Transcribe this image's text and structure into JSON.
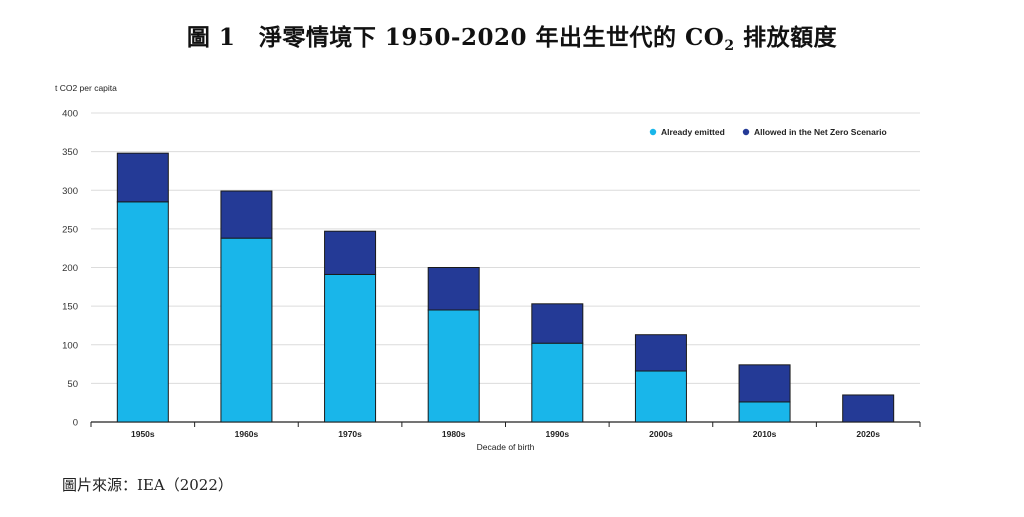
{
  "figure": {
    "title_prefix": "圖 1　淨零情境下 1950-2020 年出生世代的 CO",
    "title_sub": "2",
    "title_suffix": " 排放額度",
    "source": "圖片來源：IEA（2022）"
  },
  "chart_data": {
    "type": "bar",
    "stacked": true,
    "ylabel": "t CO2 per capita",
    "xlabel": "Decade of birth",
    "ylim": [
      0,
      400
    ],
    "yticks": [
      0,
      50,
      100,
      150,
      200,
      250,
      300,
      350,
      400
    ],
    "grid": true,
    "legend_position": "top-right",
    "categories": [
      "1950s",
      "1960s",
      "1970s",
      "1980s",
      "1990s",
      "2000s",
      "2010s",
      "2020s"
    ],
    "series": [
      {
        "name": "Already emitted",
        "color": "#19b6ea",
        "values": [
          285,
          238,
          191,
          145,
          102,
          66,
          26,
          0
        ]
      },
      {
        "name": "Allowed in the Net Zero Scenario",
        "color": "#243a96",
        "values": [
          63,
          61,
          56,
          55,
          51,
          47,
          48,
          35
        ]
      }
    ]
  }
}
